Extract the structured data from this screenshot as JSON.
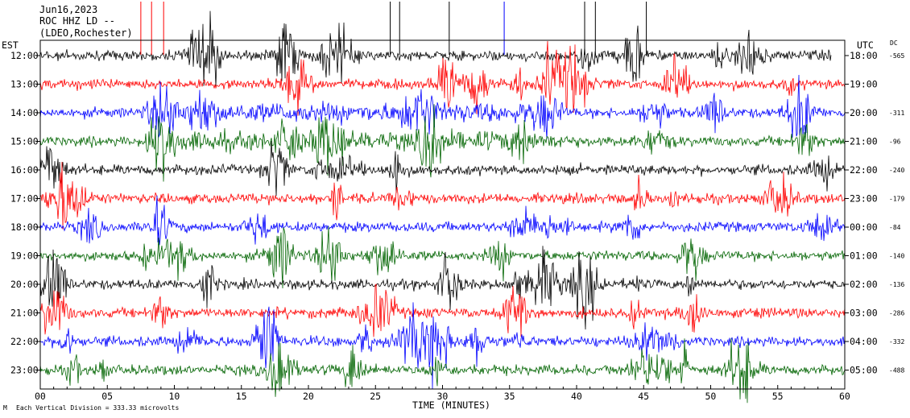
{
  "header": {
    "date": "Jun16,2023",
    "station": "ROC HHZ LD --",
    "network": "(LDEO,Rochester)"
  },
  "left_tz": "EST",
  "right_tz": "UTC",
  "dc_label": "DC",
  "footer": {
    "xlabel": "TIME (MINUTES)",
    "scale_note": "Each Vertical Division =  333.33 microvolts"
  },
  "colors": {
    "black": "#000000",
    "red": "#ff0000",
    "blue": "#0000ff",
    "green": "#006400"
  },
  "chart_data": {
    "type": "line",
    "subtype": "helicorder",
    "xlabel": "TIME (MINUTES)",
    "xlim": [
      0,
      60
    ],
    "x_ticks": [
      "00",
      "05",
      "10",
      "15",
      "20",
      "25",
      "30",
      "35",
      "40",
      "45",
      "50",
      "55",
      "60"
    ],
    "rows": [
      {
        "est": "12:00",
        "utc": "18:00",
        "dc": "-565",
        "color": "black"
      },
      {
        "est": "13:00",
        "utc": "19:00",
        "dc": "",
        "color": "red"
      },
      {
        "est": "14:00",
        "utc": "20:00",
        "dc": "-311",
        "color": "blue"
      },
      {
        "est": "15:00",
        "utc": "21:00",
        "dc": "-96",
        "color": "green"
      },
      {
        "est": "16:00",
        "utc": "22:00",
        "dc": "-240",
        "color": "black"
      },
      {
        "est": "17:00",
        "utc": "23:00",
        "dc": "-179",
        "color": "red"
      },
      {
        "est": "18:00",
        "utc": "00:00",
        "dc": "-84",
        "color": "blue"
      },
      {
        "est": "19:00",
        "utc": "01:00",
        "dc": "-140",
        "color": "green"
      },
      {
        "est": "20:00",
        "utc": "02:00",
        "dc": "-136",
        "color": "black"
      },
      {
        "est": "21:00",
        "utc": "03:00",
        "dc": "-286",
        "color": "red"
      },
      {
        "est": "22:00",
        "utc": "04:00",
        "dc": "-332",
        "color": "blue"
      },
      {
        "est": "23:00",
        "utc": "05:00",
        "dc": "-488",
        "color": "green"
      }
    ]
  }
}
